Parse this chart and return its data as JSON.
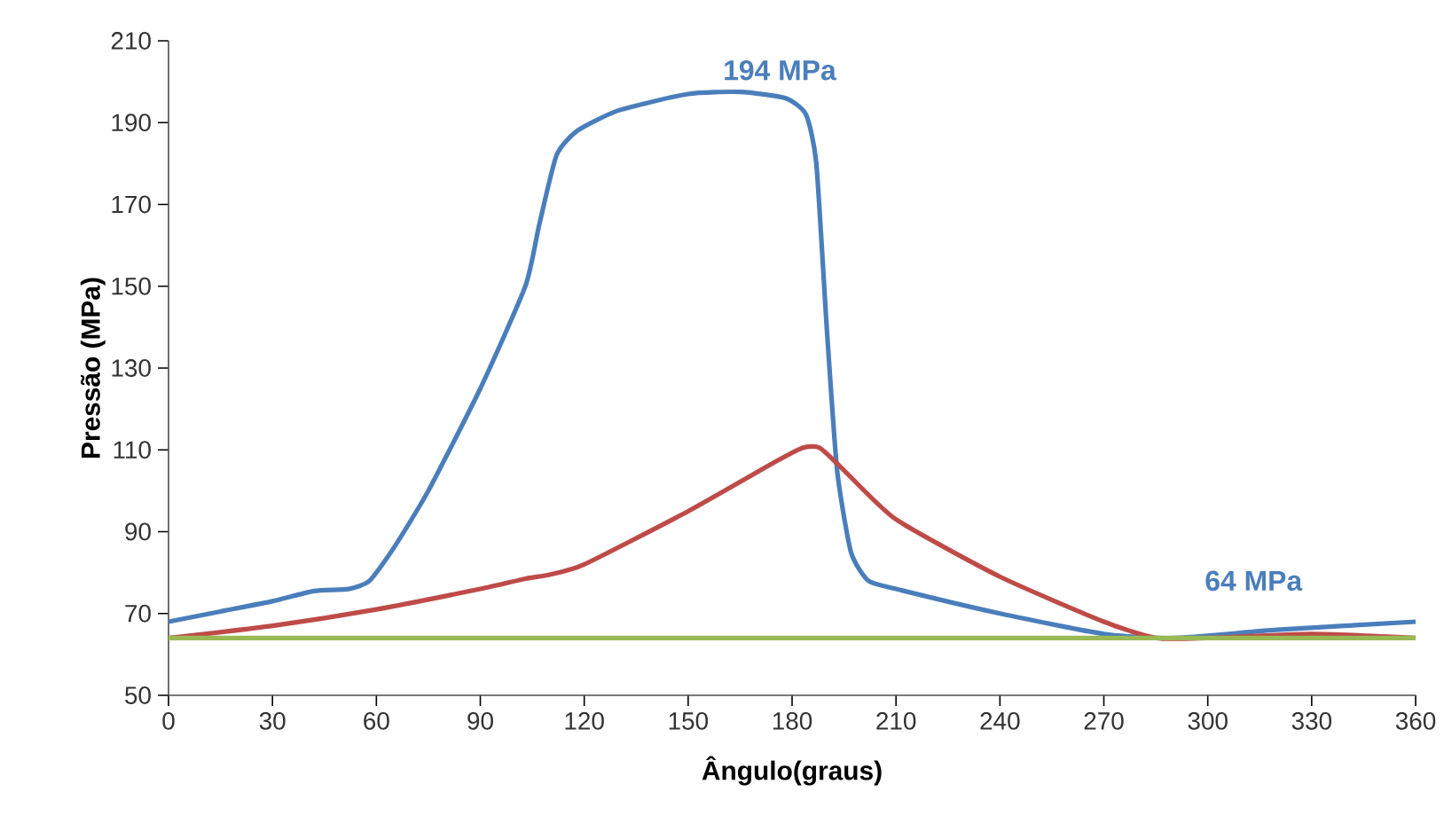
{
  "chart_data": {
    "type": "line",
    "xlabel": "Ângulo(graus)",
    "ylabel": "Pressão (MPa)",
    "xlim": [
      0,
      360
    ],
    "xticks": [
      0,
      30,
      60,
      90,
      120,
      150,
      180,
      210,
      240,
      270,
      300,
      330,
      360
    ],
    "ylim": [
      50,
      210
    ],
    "yticks": [
      50,
      70,
      90,
      110,
      130,
      150,
      170,
      190,
      210
    ],
    "grid": false,
    "line_style": "solid",
    "annotations": [
      "194 MPa",
      "64 MPa"
    ],
    "series": [
      {
        "color": "#4a7ebb",
        "x": [
          0,
          15,
          30,
          42,
          52,
          58,
          65,
          75,
          90,
          103,
          107,
          112,
          118,
          130,
          150,
          165,
          178,
          184,
          187,
          190,
          193,
          197,
          202,
          210,
          240,
          270,
          290,
          320,
          360
        ],
        "values": [
          68,
          70.5,
          73,
          75.5,
          76,
          78,
          86,
          100,
          125,
          150,
          165,
          182,
          188,
          193,
          197,
          197.5,
          196,
          192,
          180,
          140,
          105,
          85,
          78,
          76,
          70,
          65,
          64,
          66,
          68
        ]
      },
      {
        "color": "#be4b48",
        "x": [
          0,
          30,
          60,
          90,
          103,
          110,
          120,
          150,
          175,
          183,
          188,
          195,
          210,
          240,
          270,
          285,
          300,
          330,
          360
        ],
        "values": [
          64,
          67,
          71,
          76,
          78.5,
          79.5,
          82,
          95,
          107,
          110.5,
          110.5,
          105,
          93,
          79,
          68,
          64,
          64,
          65,
          64
        ]
      },
      {
        "color": "#98b954",
        "x": [
          0,
          360
        ],
        "values": [
          64,
          64
        ]
      }
    ]
  }
}
